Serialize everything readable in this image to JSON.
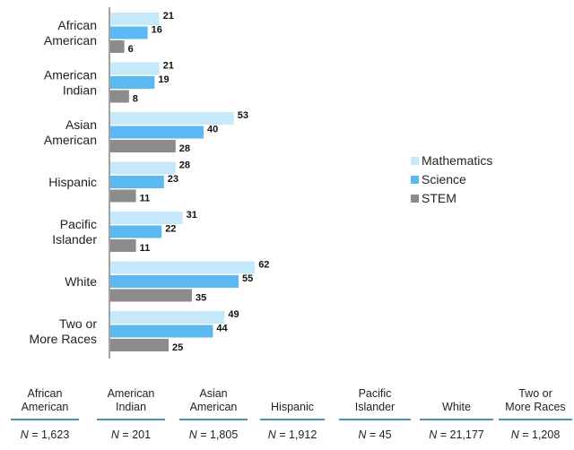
{
  "chart_data": {
    "type": "bar",
    "orientation": "horizontal",
    "categories": [
      "African\nAmerican",
      "American\nIndian",
      "Asian\nAmerican",
      "Hispanic",
      "Pacific\nIslander",
      "White",
      "Two or\nMore Races"
    ],
    "series": [
      {
        "name": "Mathematics",
        "color": "#c5e8fb",
        "values": [
          21,
          21,
          53,
          28,
          31,
          62,
          49
        ]
      },
      {
        "name": "Science",
        "color": "#5bb8f0",
        "values": [
          16,
          19,
          40,
          23,
          22,
          55,
          44
        ]
      },
      {
        "name": "STEM",
        "color": "#8c8c8c",
        "values": [
          6,
          8,
          28,
          11,
          11,
          35,
          25
        ]
      }
    ],
    "legend_position": "right",
    "xlim": [
      0,
      100
    ],
    "grid": false,
    "title": "",
    "xlabel": "",
    "ylabel": ""
  },
  "n_table": {
    "columns": [
      {
        "label": "African\nAmerican",
        "n": "1,623"
      },
      {
        "label": "American\nIndian",
        "n": "201"
      },
      {
        "label": "Asian\nAmerican",
        "n": "1,805"
      },
      {
        "label": "Hispanic",
        "n": "1,912"
      },
      {
        "label": "Pacific\nIslander",
        "n": "45"
      },
      {
        "label": "White",
        "n": "21,177"
      },
      {
        "label": "Two or\nMore Races",
        "n": "1,208"
      }
    ],
    "n_symbol": "N",
    "n_equals": " = "
  }
}
